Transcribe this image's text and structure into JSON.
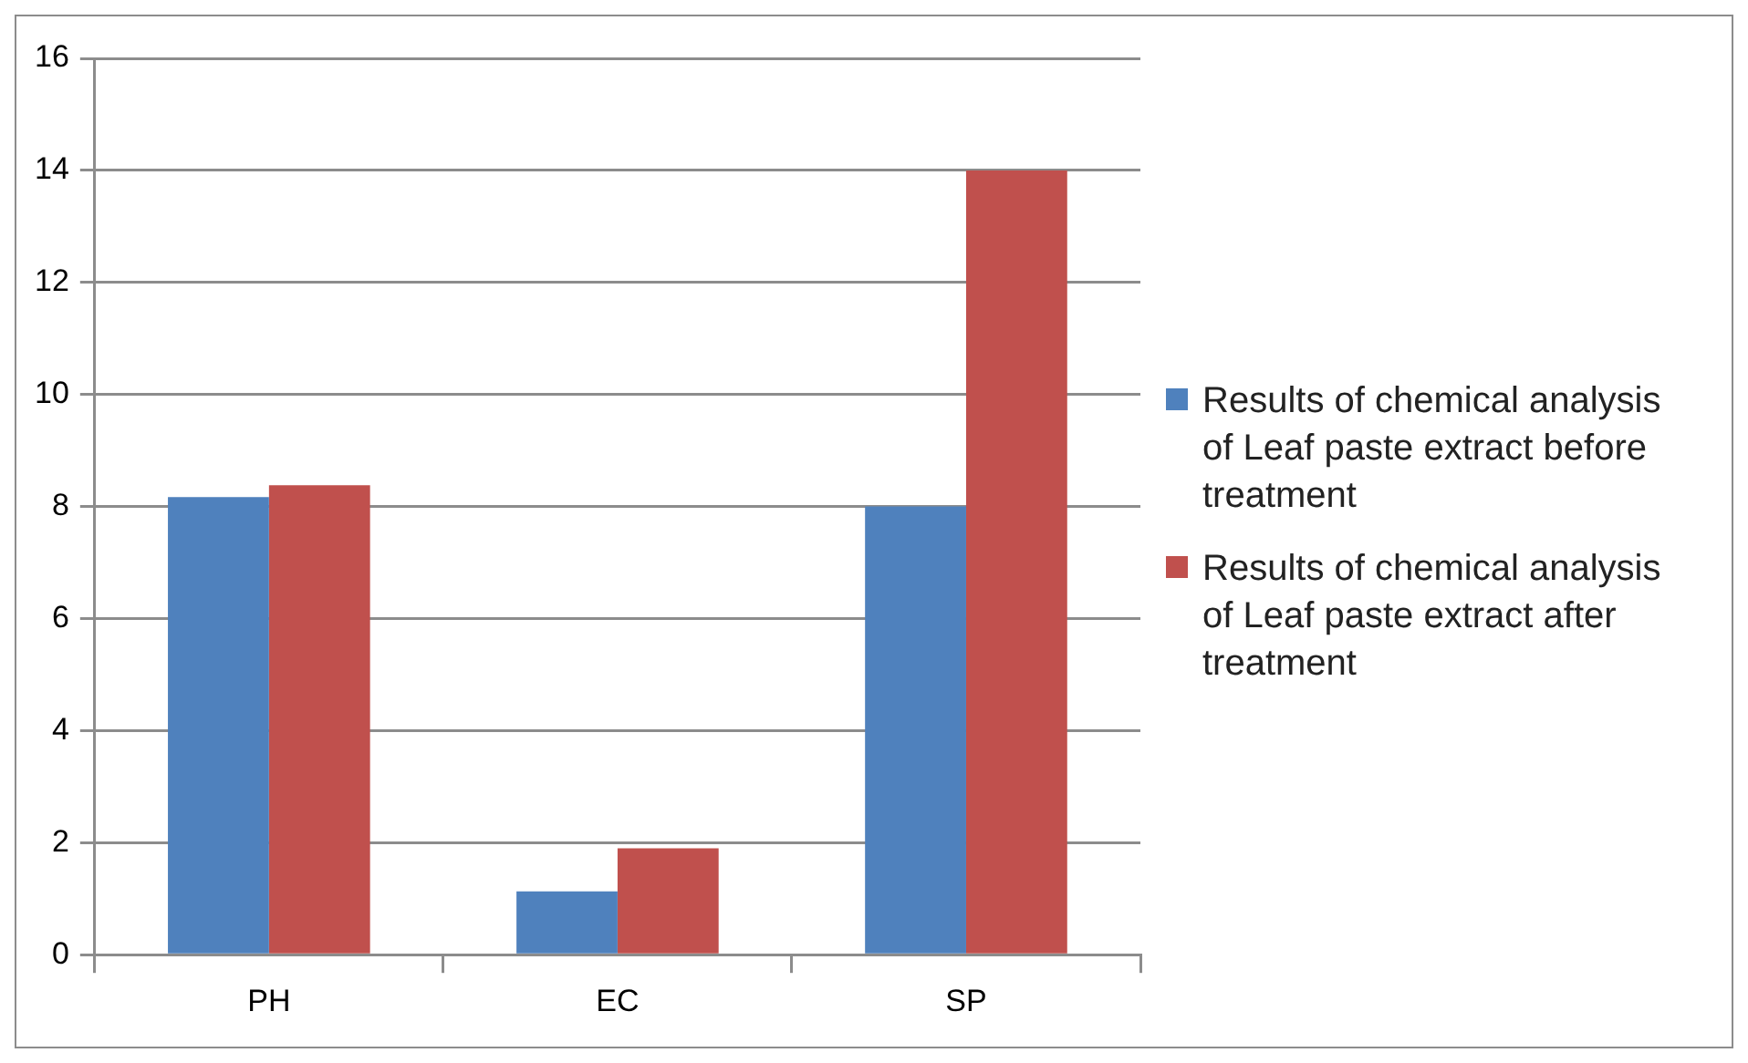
{
  "chart_data": {
    "type": "bar",
    "categories": [
      "PH",
      "EC",
      "SP"
    ],
    "series": [
      {
        "name": "Results of chemical analysis of Leaf paste extract before treatment",
        "color": "#4f81bd",
        "values": [
          8.17,
          1.13,
          8
        ]
      },
      {
        "name": "Results of chemical analysis of Leaf paste extract after treatment",
        "color": "#c0504d",
        "values": [
          8.38,
          1.9,
          14
        ]
      }
    ],
    "ylim": [
      0,
      16
    ],
    "yticks": [
      0,
      2,
      4,
      6,
      8,
      10,
      12,
      14,
      16
    ],
    "grid": "y",
    "legend": "right"
  }
}
